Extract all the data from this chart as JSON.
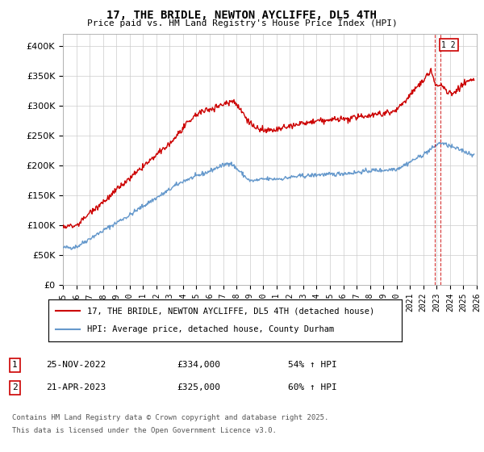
{
  "title": "17, THE BRIDLE, NEWTON AYCLIFFE, DL5 4TH",
  "subtitle": "Price paid vs. HM Land Registry's House Price Index (HPI)",
  "legend_line1": "17, THE BRIDLE, NEWTON AYCLIFFE, DL5 4TH (detached house)",
  "legend_line2": "HPI: Average price, detached house, County Durham",
  "annotation1_label": "1",
  "annotation1_date": "25-NOV-2022",
  "annotation1_price": "£334,000",
  "annotation1_pct": "54% ↑ HPI",
  "annotation2_label": "2",
  "annotation2_date": "21-APR-2023",
  "annotation2_price": "£325,000",
  "annotation2_pct": "60% ↑ HPI",
  "red_color": "#cc0000",
  "blue_color": "#6699cc",
  "xmin": 1995,
  "xmax": 2026,
  "ymin": 0,
  "ymax": 420000,
  "yticks": [
    0,
    50000,
    100000,
    150000,
    200000,
    250000,
    300000,
    350000,
    400000
  ],
  "footnote_line1": "Contains HM Land Registry data © Crown copyright and database right 2025.",
  "footnote_line2": "This data is licensed under the Open Government Licence v3.0.",
  "ann1_x": 2022.88,
  "ann2_x": 2023.29
}
